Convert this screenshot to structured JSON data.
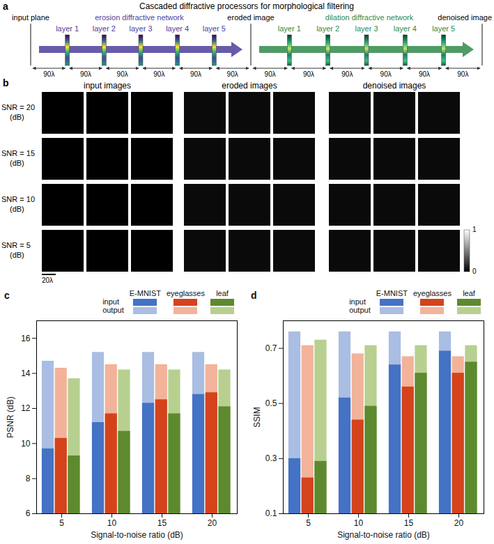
{
  "panel_a": {
    "letter": "a",
    "title": "Cascaded diffractive processors for morphological filtering",
    "input_label": "input plane",
    "intermediate_label": "eroded image",
    "output_label": "denoised image",
    "spacing_label": "90λ",
    "networks": [
      {
        "name": "erosion diffractive network",
        "color": "#4b3f9a",
        "layers": [
          "layer 1",
          "layer 2",
          "layer 3",
          "layer 4",
          "layer 5"
        ]
      },
      {
        "name": "dilation diffractive network",
        "color": "#2f8a4a",
        "layers": [
          "layer 1",
          "layer 2",
          "layer 3",
          "layer 4",
          "layer 5"
        ]
      }
    ]
  },
  "panel_b": {
    "letter": "b",
    "columns": [
      "input images",
      "eroded images",
      "denoised images"
    ],
    "rows": [
      "SNR = 20 (dB)",
      "SNR = 15 (dB)",
      "SNR = 10 (dB)",
      "SNR = 5 (dB)"
    ],
    "scale_bar": "20λ",
    "colorbar": {
      "range": [
        0,
        1
      ],
      "ticks": [
        0,
        1
      ]
    }
  },
  "chart_data": [
    {
      "type": "bar",
      "panel_label": "c",
      "x_label": "Signal-to-noise ratio (dB)",
      "y_label": "PSNR (dB)",
      "categories": [
        5,
        10,
        15,
        20
      ],
      "ylim": [
        6,
        17
      ],
      "yticks": [
        6,
        8,
        10,
        12,
        14,
        16
      ],
      "grid": false,
      "legend": "top",
      "series": [
        {
          "name": "E-MNIST",
          "layers": [
            {
              "name": "input",
              "color": "#4472c4",
              "values": [
                9.7,
                11.2,
                12.3,
                12.8
              ]
            },
            {
              "name": "output",
              "color": "#aabde3",
              "values": [
                14.7,
                15.2,
                15.2,
                15.2
              ]
            }
          ]
        },
        {
          "name": "eyeglasses",
          "layers": [
            {
              "name": "input",
              "color": "#d4431c",
              "values": [
                10.3,
                11.7,
                12.5,
                12.9
              ]
            },
            {
              "name": "output",
              "color": "#f2b39a",
              "values": [
                14.3,
                14.5,
                14.5,
                14.5
              ]
            }
          ]
        },
        {
          "name": "leaf",
          "layers": [
            {
              "name": "input",
              "color": "#5d8a2f",
              "values": [
                9.3,
                10.7,
                11.7,
                12.1
              ]
            },
            {
              "name": "output",
              "color": "#b7d08f",
              "values": [
                13.7,
                14.2,
                14.2,
                14.2
              ]
            }
          ]
        }
      ]
    },
    {
      "type": "bar",
      "panel_label": "d",
      "x_label": "Signal-to-noise ratio (dB)",
      "y_label": "SSIM",
      "categories": [
        5,
        10,
        15,
        20
      ],
      "ylim": [
        0.1,
        0.8
      ],
      "yticks": [
        0.1,
        0.3,
        0.5,
        0.7
      ],
      "grid": false,
      "legend": "top",
      "series": [
        {
          "name": "E-MNIST",
          "layers": [
            {
              "name": "input",
              "color": "#4472c4",
              "values": [
                0.3,
                0.52,
                0.64,
                0.69
              ]
            },
            {
              "name": "output",
              "color": "#aabde3",
              "values": [
                0.76,
                0.76,
                0.76,
                0.76
              ]
            }
          ]
        },
        {
          "name": "eyeglasses",
          "layers": [
            {
              "name": "input",
              "color": "#d4431c",
              "values": [
                0.23,
                0.44,
                0.56,
                0.61
              ]
            },
            {
              "name": "output",
              "color": "#f2b39a",
              "values": [
                0.71,
                0.68,
                0.67,
                0.67
              ]
            }
          ]
        },
        {
          "name": "leaf",
          "layers": [
            {
              "name": "input",
              "color": "#5d8a2f",
              "values": [
                0.29,
                0.49,
                0.61,
                0.65
              ]
            },
            {
              "name": "output",
              "color": "#b7d08f",
              "values": [
                0.73,
                0.71,
                0.71,
                0.71
              ]
            }
          ]
        }
      ]
    }
  ]
}
